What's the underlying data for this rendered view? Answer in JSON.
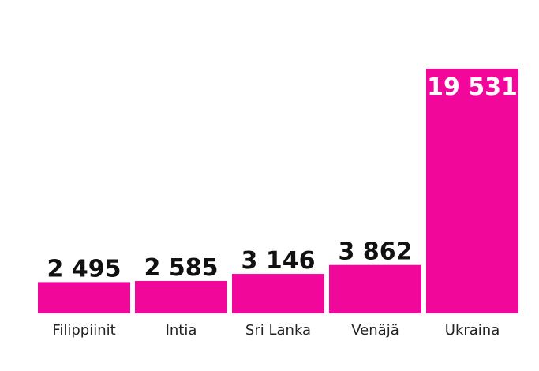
{
  "chart_data": {
    "type": "bar",
    "categories": [
      "Filippiinit",
      "Intia",
      "Sri Lanka",
      "Venäjä",
      "Ukraina"
    ],
    "values": [
      2495,
      2585,
      3146,
      3862,
      19531
    ],
    "value_labels": [
      "2 495",
      "2 585",
      "3 146",
      "3 862",
      "19 531"
    ],
    "title": "",
    "xlabel": "",
    "ylabel": "",
    "ylim": [
      0,
      19531
    ],
    "grid": false,
    "legend": "none",
    "bar_color": "#f2079b"
  }
}
